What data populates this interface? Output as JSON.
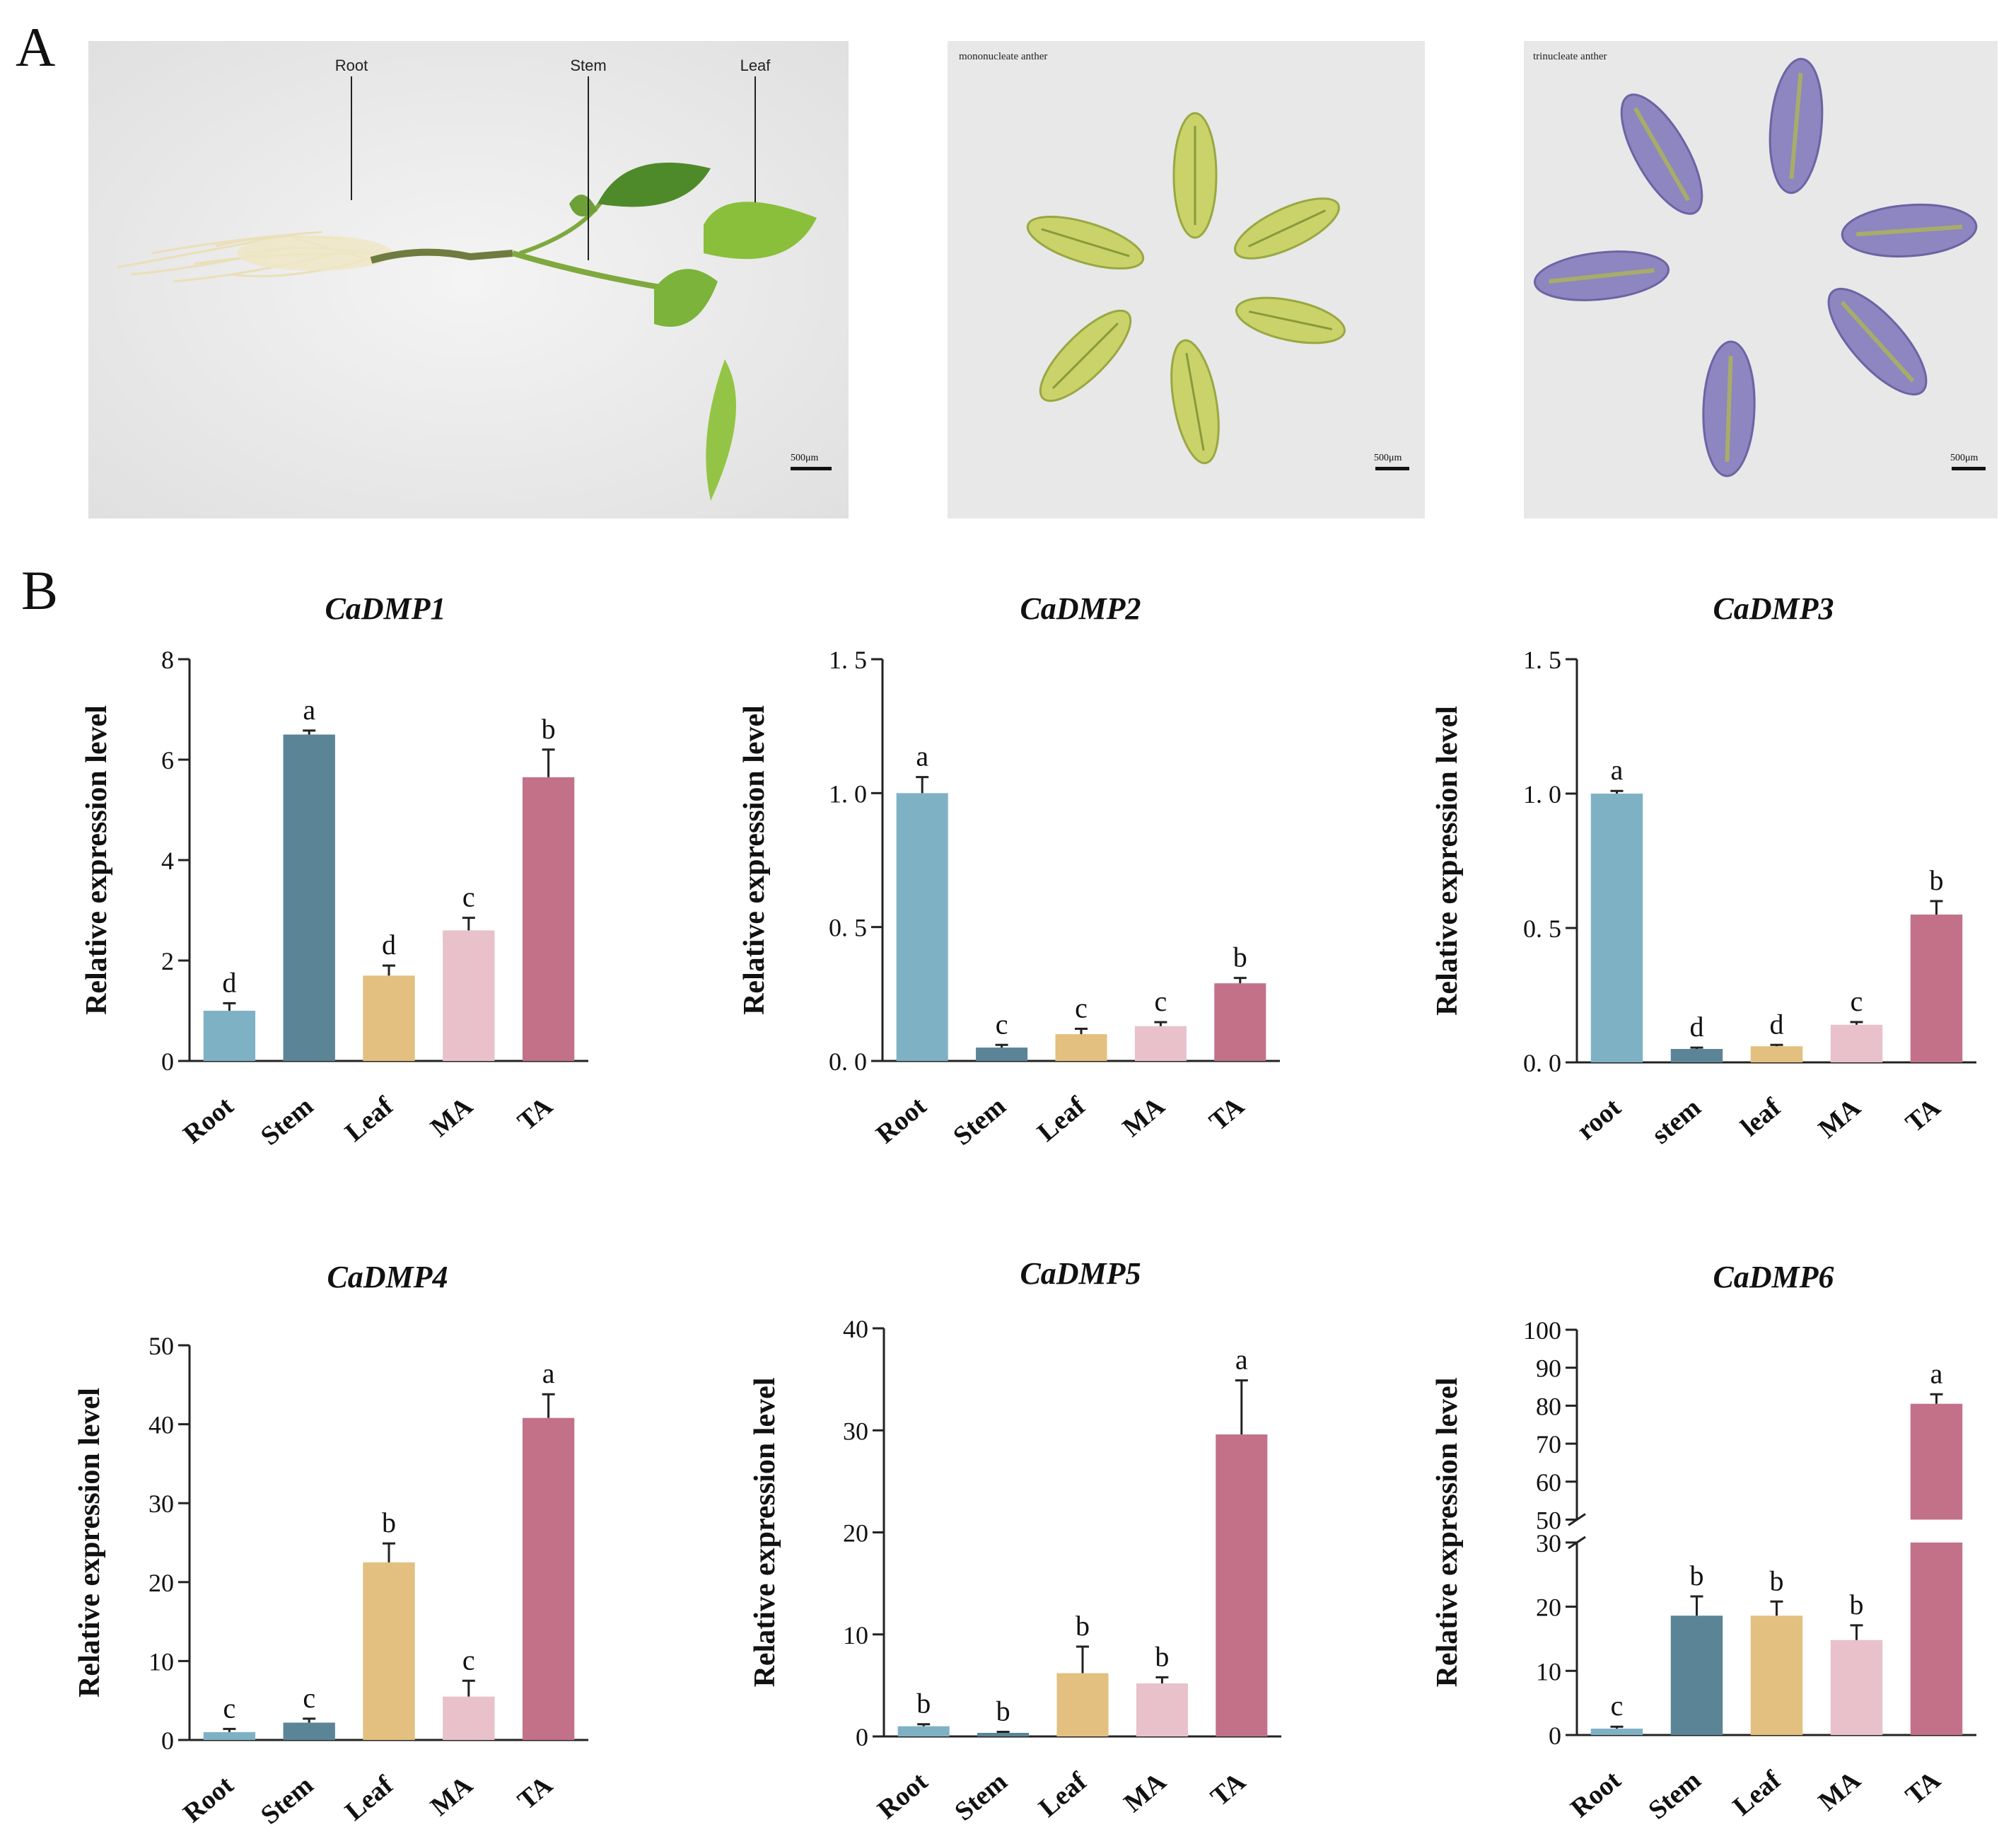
{
  "panels": {
    "a": "A",
    "b": "B"
  },
  "photos": {
    "seedling": {
      "labels": [
        "Root",
        "Stem",
        "Leaf"
      ],
      "scale": "500μm"
    },
    "mononucleate": {
      "caption": "mononucleate anther",
      "scale": "500μm"
    },
    "trinucleate": {
      "caption": "trinucleate anther",
      "scale": "500μm"
    }
  },
  "colors": {
    "Root": "#7fb1c4",
    "Stem": "#5b8597",
    "Leaf": "#e3c07f",
    "MA": "#e8c1cb",
    "TA": "#c27189"
  },
  "chart_data": [
    {
      "type": "bar",
      "title": "CaDMP1",
      "ylabel": "Relative expression level",
      "categories": [
        "Root",
        "Stem",
        "Leaf",
        "MA",
        "TA"
      ],
      "values": [
        1.0,
        6.5,
        1.7,
        2.6,
        5.65
      ],
      "errors": [
        0.15,
        0.08,
        0.2,
        0.25,
        0.55
      ],
      "letters": [
        "d",
        "a",
        "d",
        "c",
        "b"
      ],
      "ylim": [
        0,
        8
      ],
      "yticks": [
        "0",
        "2",
        "4",
        "6",
        "8"
      ],
      "ytick_values": [
        0,
        2,
        4,
        6,
        8
      ]
    },
    {
      "type": "bar",
      "title": "CaDMP2",
      "ylabel": "Relative expression level",
      "categories": [
        "Root",
        "Stem",
        "Leaf",
        "MA",
        "TA"
      ],
      "values": [
        1.0,
        0.05,
        0.1,
        0.13,
        0.29
      ],
      "errors": [
        0.06,
        0.01,
        0.02,
        0.015,
        0.02
      ],
      "letters": [
        "a",
        "c",
        "c",
        "c",
        "b"
      ],
      "ylim": [
        0,
        1.5
      ],
      "yticks": [
        "0. 0",
        "0. 5",
        "1. 0",
        "1. 5"
      ],
      "ytick_values": [
        0,
        0.5,
        1.0,
        1.5
      ]
    },
    {
      "type": "bar",
      "title": "CaDMP3",
      "ylabel": "Relative expression level",
      "categories": [
        "root",
        "stem",
        "leaf",
        "MA",
        "TA"
      ],
      "values": [
        1.0,
        0.05,
        0.06,
        0.14,
        0.55
      ],
      "errors": [
        0.01,
        0.005,
        0.005,
        0.01,
        0.05
      ],
      "letters": [
        "a",
        "d",
        "d",
        "c",
        "b"
      ],
      "ylim": [
        0,
        1.5
      ],
      "yticks": [
        "0. 0",
        "0. 5",
        "1. 0",
        "1. 5"
      ],
      "ytick_values": [
        0,
        0.5,
        1.0,
        1.5
      ]
    },
    {
      "type": "bar",
      "title": "CaDMP4",
      "ylabel": "Relative expression level",
      "categories": [
        "Root",
        "Stem",
        "Leaf",
        "MA",
        "TA"
      ],
      "values": [
        1.0,
        2.2,
        22.5,
        5.5,
        40.8
      ],
      "errors": [
        0.4,
        0.5,
        2.4,
        2.0,
        3.0
      ],
      "letters": [
        "c",
        "c",
        "b",
        "c",
        "a"
      ],
      "ylim": [
        0,
        50
      ],
      "yticks": [
        "0",
        "10",
        "20",
        "30",
        "40",
        "50"
      ],
      "ytick_values": [
        0,
        10,
        20,
        30,
        40,
        50
      ]
    },
    {
      "type": "bar",
      "title": "CaDMP5",
      "ylabel": "Relative expression level",
      "categories": [
        "Root",
        "Stem",
        "Leaf",
        "MA",
        "TA"
      ],
      "values": [
        1.0,
        0.35,
        6.2,
        5.2,
        29.6
      ],
      "errors": [
        0.2,
        0.1,
        2.6,
        0.6,
        5.3
      ],
      "letters": [
        "b",
        "b",
        "b",
        "b",
        "a"
      ],
      "ylim": [
        0,
        40
      ],
      "yticks": [
        "0",
        "10",
        "20",
        "30",
        "40"
      ],
      "ytick_values": [
        0,
        10,
        20,
        30,
        40
      ]
    },
    {
      "type": "bar",
      "title": "CaDMP6",
      "ylabel": "Relative expression level",
      "categories": [
        "Root",
        "Stem",
        "Leaf",
        "MA",
        "TA"
      ],
      "values": [
        1.0,
        18.6,
        18.6,
        14.8,
        80.5
      ],
      "errors": [
        0.3,
        3.0,
        2.2,
        2.3,
        2.5
      ],
      "letters": [
        "c",
        "b",
        "b",
        "b",
        "a"
      ],
      "ylim": [
        0,
        100
      ],
      "broken_axis": [
        30,
        50
      ],
      "yticks": [
        "0",
        "10",
        "20",
        "30",
        "50",
        "60",
        "70",
        "80",
        "90",
        "100"
      ],
      "ytick_values": [
        0,
        10,
        20,
        30,
        50,
        60,
        70,
        80,
        90,
        100
      ]
    }
  ]
}
